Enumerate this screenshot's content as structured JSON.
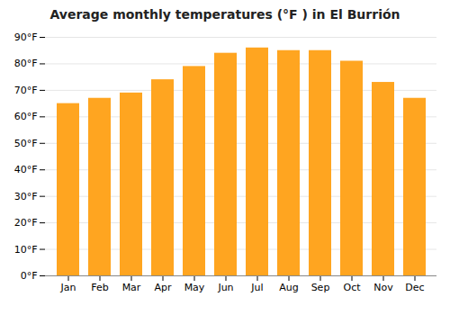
{
  "chart_data": {
    "type": "bar",
    "title": "Average monthly temperatures (°F ) in El Burrión",
    "categories": [
      "Jan",
      "Feb",
      "Mar",
      "Apr",
      "May",
      "Jun",
      "Jul",
      "Aug",
      "Sep",
      "Oct",
      "Nov",
      "Dec"
    ],
    "values": [
      65,
      67,
      69,
      74,
      79,
      84,
      86,
      85,
      85,
      81,
      73,
      67
    ],
    "color": "#FFA520",
    "ylim": [
      0,
      90
    ],
    "yticks": [
      {
        "value": 0,
        "label": "0°F"
      },
      {
        "value": 10,
        "label": "10°F"
      },
      {
        "value": 20,
        "label": "20°F"
      },
      {
        "value": 30,
        "label": "30°F"
      },
      {
        "value": 40,
        "label": "40°F"
      },
      {
        "value": 50,
        "label": "50°F"
      },
      {
        "value": 60,
        "label": "60°F"
      },
      {
        "value": 70,
        "label": "70°F"
      },
      {
        "value": 80,
        "label": "80°F"
      },
      {
        "value": 90,
        "label": "90°F"
      }
    ],
    "grid": true
  }
}
